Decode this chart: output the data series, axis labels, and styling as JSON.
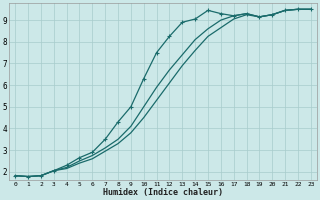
{
  "xlabel": "Humidex (Indice chaleur)",
  "bg_color": "#cce8e8",
  "grid_color": "#a8cccc",
  "line_color": "#1a6b6b",
  "xlim": [
    -0.5,
    23.5
  ],
  "ylim": [
    1.6,
    9.8
  ],
  "xticks": [
    0,
    1,
    2,
    3,
    4,
    5,
    6,
    7,
    8,
    9,
    10,
    11,
    12,
    13,
    14,
    15,
    16,
    17,
    18,
    19,
    20,
    21,
    22,
    23
  ],
  "yticks": [
    2,
    3,
    4,
    5,
    6,
    7,
    8,
    9
  ],
  "line1_x": [
    0,
    1,
    2,
    3,
    4,
    5,
    6,
    7,
    8,
    9,
    10,
    11,
    12,
    13,
    14,
    15,
    16,
    17,
    18,
    19,
    20,
    21,
    22,
    23
  ],
  "line1_y": [
    1.82,
    1.78,
    1.82,
    2.05,
    2.3,
    2.65,
    2.9,
    3.5,
    4.3,
    5.0,
    6.3,
    7.5,
    8.25,
    8.9,
    9.05,
    9.45,
    9.3,
    9.2,
    9.3,
    9.15,
    9.25,
    9.45,
    9.5,
    9.5
  ],
  "line2_x": [
    0,
    1,
    2,
    3,
    4,
    5,
    6,
    7,
    8,
    9,
    10,
    11,
    12,
    13,
    14,
    15,
    16,
    17,
    18,
    19,
    20,
    21,
    22,
    23
  ],
  "line2_y": [
    1.82,
    1.78,
    1.82,
    2.05,
    2.2,
    2.5,
    2.75,
    3.1,
    3.5,
    4.1,
    5.0,
    5.9,
    6.7,
    7.4,
    8.1,
    8.6,
    9.0,
    9.2,
    9.3,
    9.15,
    9.25,
    9.45,
    9.5,
    9.5
  ],
  "line3_x": [
    0,
    1,
    2,
    3,
    4,
    5,
    6,
    7,
    8,
    9,
    10,
    11,
    12,
    13,
    14,
    15,
    16,
    17,
    18,
    19,
    20,
    21,
    22,
    23
  ],
  "line3_y": [
    1.82,
    1.78,
    1.82,
    2.05,
    2.15,
    2.4,
    2.6,
    2.95,
    3.3,
    3.8,
    4.5,
    5.3,
    6.1,
    6.9,
    7.6,
    8.25,
    8.65,
    9.05,
    9.25,
    9.15,
    9.25,
    9.45,
    9.5,
    9.5
  ]
}
